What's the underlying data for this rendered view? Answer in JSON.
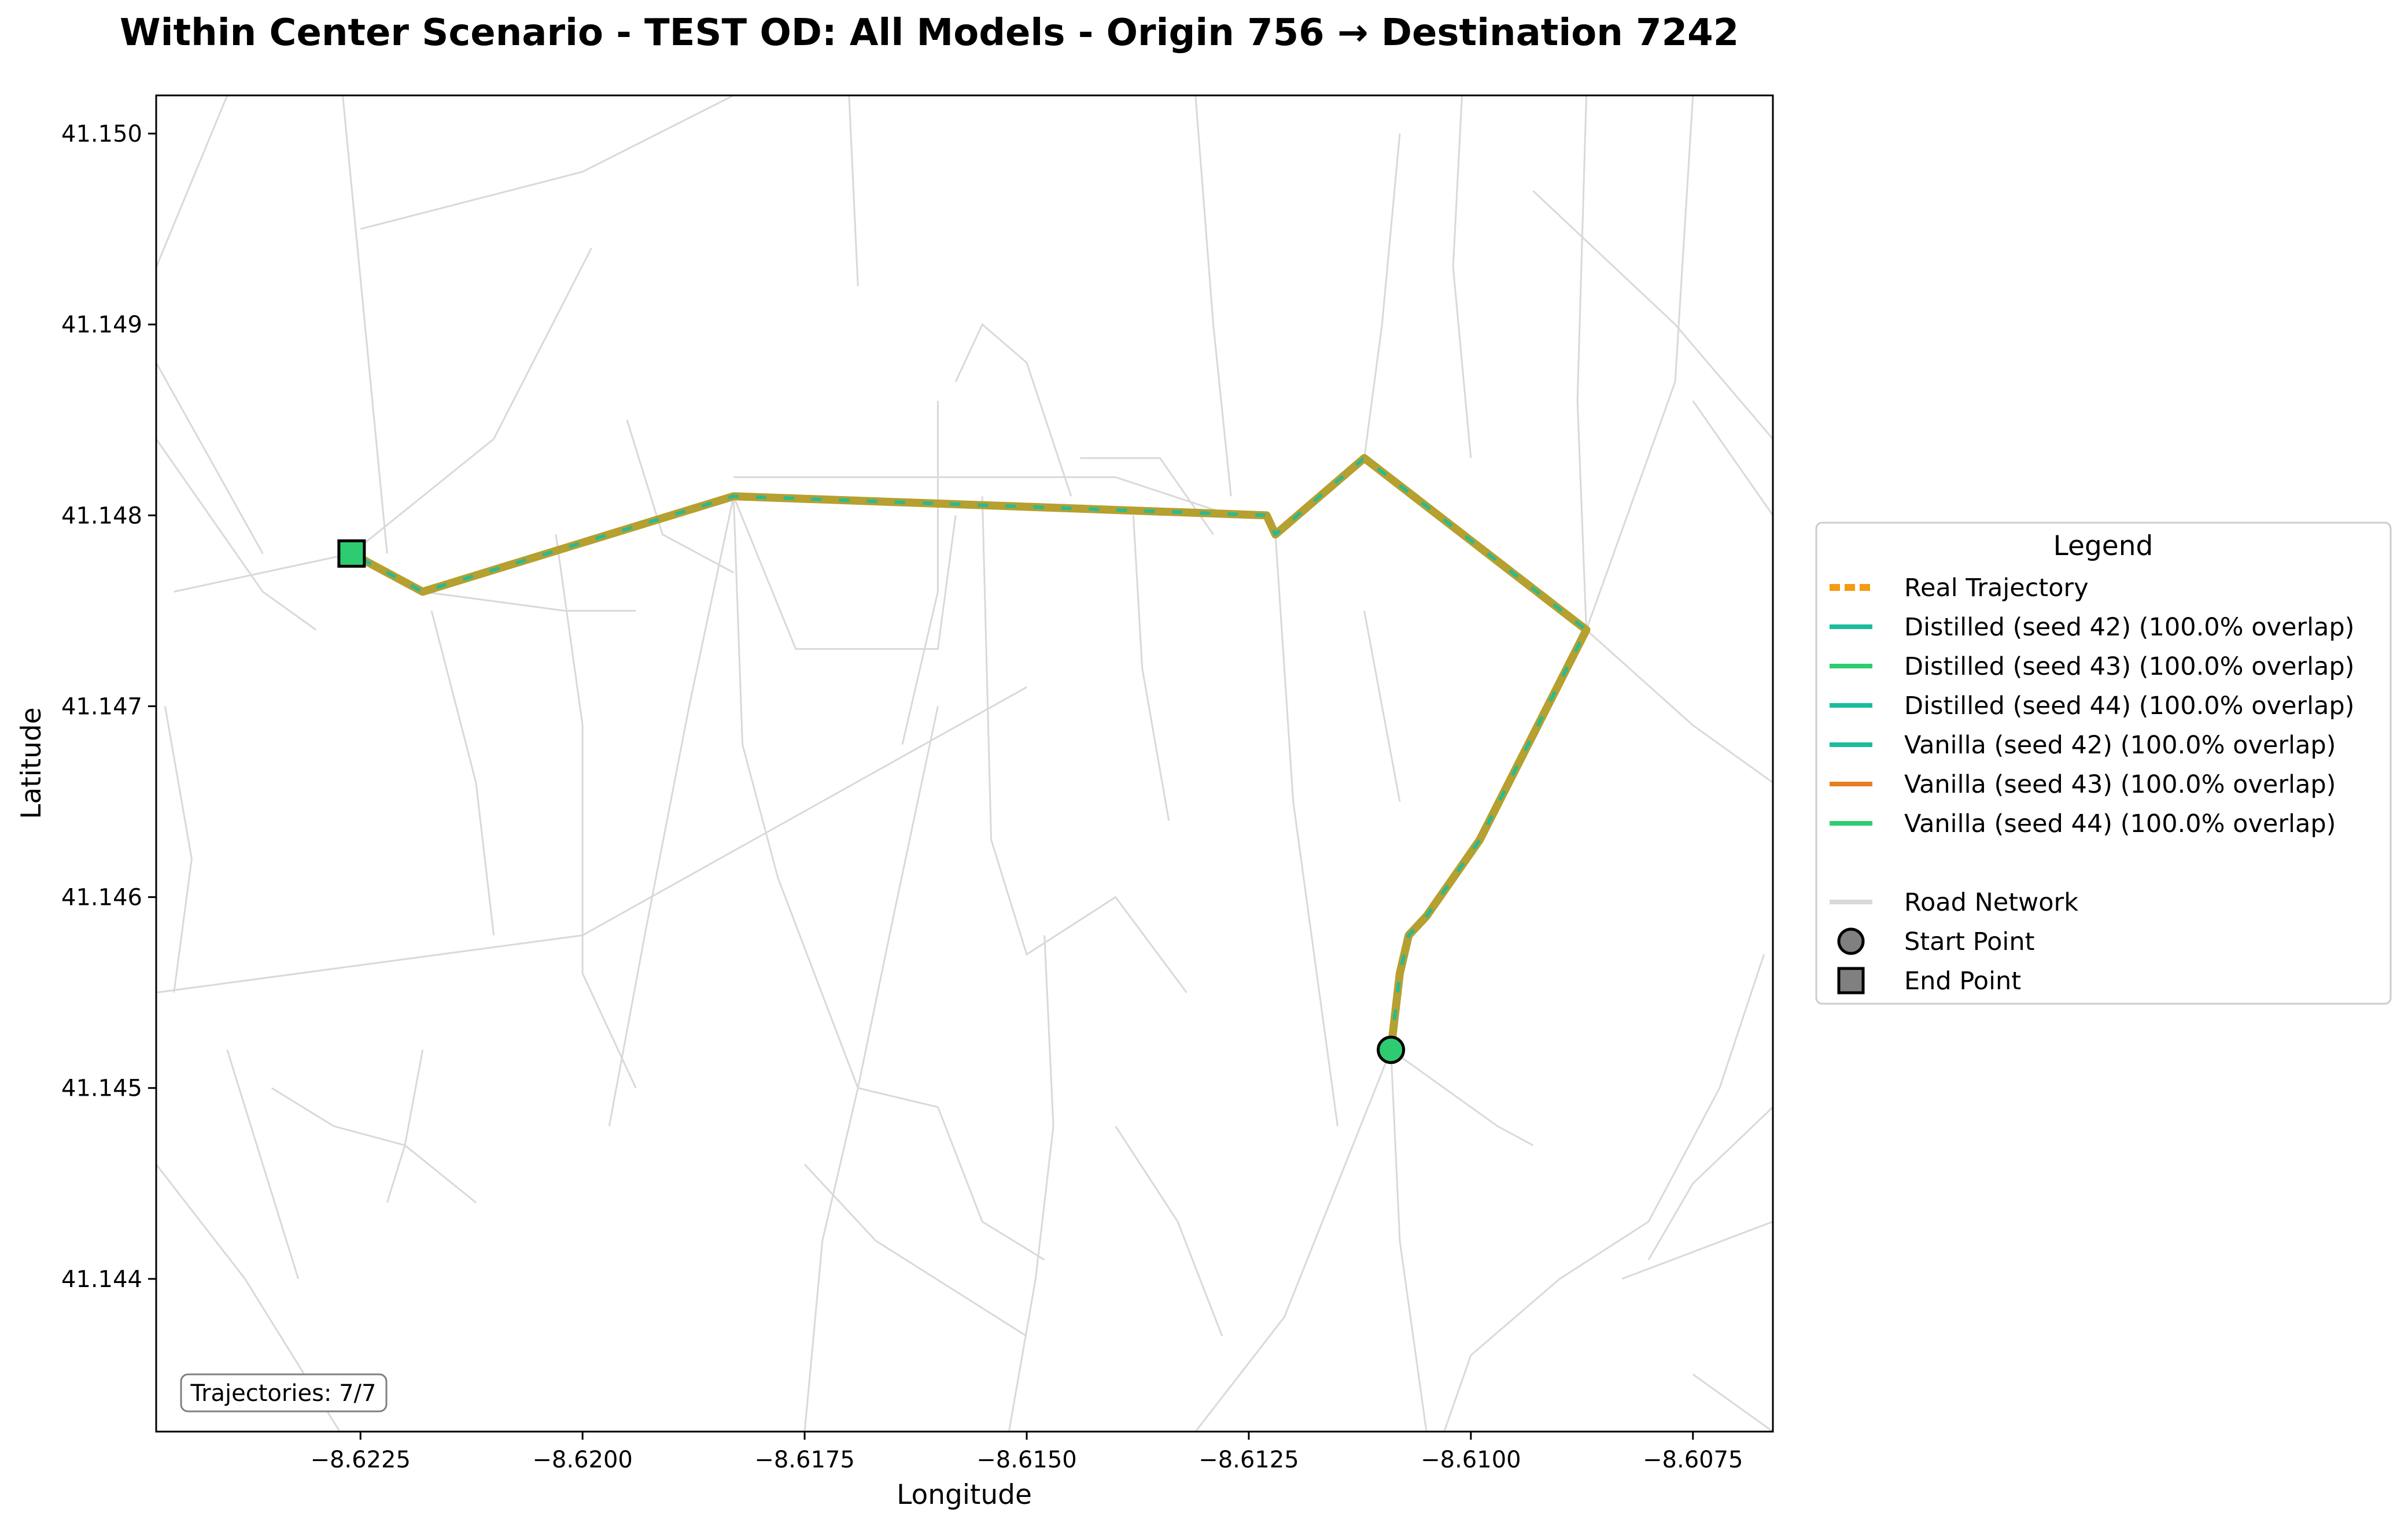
{
  "chart_data": {
    "type": "line",
    "title": "Within Center Scenario - TEST OD: All Models - Origin 756 → Destination 7242",
    "xlabel": "Longitude",
    "ylabel": "Latitude",
    "xlim": [
      -8.6248,
      -8.6066
    ],
    "ylim": [
      41.1432,
      41.1502
    ],
    "x_ticks": [
      {
        "value": -8.6225,
        "label": "−8.6225"
      },
      {
        "value": -8.62,
        "label": "−8.6200"
      },
      {
        "value": -8.6175,
        "label": "−8.6175"
      },
      {
        "value": -8.615,
        "label": "−8.6150"
      },
      {
        "value": -8.6125,
        "label": "−8.6125"
      },
      {
        "value": -8.61,
        "label": "−8.6100"
      },
      {
        "value": -8.6075,
        "label": "−8.6075"
      }
    ],
    "y_ticks": [
      {
        "value": 41.144,
        "label": "41.144"
      },
      {
        "value": 41.145,
        "label": "41.145"
      },
      {
        "value": 41.146,
        "label": "41.146"
      },
      {
        "value": 41.147,
        "label": "41.147"
      },
      {
        "value": 41.148,
        "label": "41.148"
      },
      {
        "value": 41.149,
        "label": "41.149"
      },
      {
        "value": 41.15,
        "label": "41.150"
      }
    ],
    "grid": false,
    "legend_position": "right",
    "legend_title": "Legend",
    "trajectory": {
      "x": [
        -8.6109,
        -8.6108,
        -8.6107,
        -8.6105,
        -8.6102,
        -8.6099,
        -8.6087,
        -8.6112,
        -8.6122,
        -8.6123,
        -8.6183,
        -8.6218,
        -8.6226
      ],
      "y": [
        41.1452,
        41.1456,
        41.1458,
        41.1459,
        41.1461,
        41.1463,
        41.1474,
        41.1483,
        41.1479,
        41.148,
        41.1481,
        41.1476,
        41.1478
      ]
    },
    "series": [
      {
        "name": "Real Trajectory",
        "color": "#f39c12",
        "style": "dashed"
      },
      {
        "name": "Distilled (seed 42) (100.0% overlap)",
        "color": "#1abc9c",
        "style": "solid"
      },
      {
        "name": "Distilled (seed 43) (100.0% overlap)",
        "color": "#2ecc71",
        "style": "solid"
      },
      {
        "name": "Distilled (seed 44) (100.0% overlap)",
        "color": "#1abc9c",
        "style": "solid"
      },
      {
        "name": "Vanilla (seed 42) (100.0% overlap)",
        "color": "#1abc9c",
        "style": "solid"
      },
      {
        "name": "Vanilla (seed 43) (100.0% overlap)",
        "color": "#e67e22",
        "style": "solid"
      },
      {
        "name": "Vanilla (seed 44) (100.0% overlap)",
        "color": "#2ecc71",
        "style": "solid"
      }
    ],
    "extra_legend": [
      {
        "name": "Road Network",
        "kind": "line",
        "color": "#d9d9d9"
      },
      {
        "name": "Start Point",
        "kind": "circle",
        "color": "#808080"
      },
      {
        "name": "End Point",
        "kind": "square",
        "color": "#808080"
      }
    ],
    "start_point": {
      "x": -8.6109,
      "y": 41.1452,
      "color": "#2ecc71"
    },
    "end_point": {
      "x": -8.6226,
      "y": 41.1478,
      "color": "#2ecc71"
    },
    "overlay_color": "#b5a030",
    "road_color": "#d9d9d9",
    "roads": [
      [
        [
          -8.6248,
          41.1484
        ],
        [
          -8.6236,
          41.1476
        ],
        [
          -8.623,
          41.1474
        ]
      ],
      [
        [
          -8.6246,
          41.1476
        ],
        [
          -8.6226,
          41.1478
        ],
        [
          -8.621,
          41.1484
        ],
        [
          -8.6199,
          41.1494
        ]
      ],
      [
        [
          -8.6248,
          41.1493
        ],
        [
          -8.624,
          41.1502
        ]
      ],
      [
        [
          -8.6248,
          41.1488
        ],
        [
          -8.6236,
          41.1478
        ]
      ],
      [
        [
          -8.6247,
          41.147
        ],
        [
          -8.6244,
          41.1462
        ],
        [
          -8.6246,
          41.1455
        ]
      ],
      [
        [
          -8.6225,
          41.1495
        ],
        [
          -8.62,
          41.1498
        ],
        [
          -8.6183,
          41.1502
        ]
      ],
      [
        [
          -8.6227,
          41.1502
        ],
        [
          -8.6222,
          41.1478
        ]
      ],
      [
        [
          -8.6218,
          41.1476
        ],
        [
          -8.6202,
          41.1475
        ],
        [
          -8.6194,
          41.1475
        ]
      ],
      [
        [
          -8.6217,
          41.1475
        ],
        [
          -8.6212,
          41.1466
        ],
        [
          -8.621,
          41.1458
        ]
      ],
      [
        [
          -8.6248,
          41.1455
        ],
        [
          -8.62,
          41.1458
        ],
        [
          -8.615,
          41.1471
        ]
      ],
      [
        [
          -8.6203,
          41.1479
        ],
        [
          -8.62,
          41.1469
        ],
        [
          -8.62,
          41.1456
        ],
        [
          -8.6194,
          41.145
        ]
      ],
      [
        [
          -8.6195,
          41.1485
        ],
        [
          -8.6191,
          41.1479
        ],
        [
          -8.6183,
          41.1477
        ]
      ],
      [
        [
          -8.6183,
          41.1481
        ],
        [
          -8.6182,
          41.1468
        ],
        [
          -8.6178,
          41.1461
        ],
        [
          -8.6169,
          41.145
        ],
        [
          -8.616,
          41.1449
        ]
      ],
      [
        [
          -8.617,
          41.1502
        ],
        [
          -8.6169,
          41.1492
        ]
      ],
      [
        [
          -8.6183,
          41.1481
        ],
        [
          -8.6176,
          41.1473
        ],
        [
          -8.616,
          41.1473
        ],
        [
          -8.6158,
          41.148
        ]
      ],
      [
        [
          -8.6155,
          41.1481
        ],
        [
          -8.6154,
          41.1463
        ],
        [
          -8.615,
          41.1457
        ],
        [
          -8.614,
          41.146
        ],
        [
          -8.6132,
          41.1455
        ]
      ],
      [
        [
          -8.616,
          41.1486
        ],
        [
          -8.616,
          41.1476
        ],
        [
          -8.6164,
          41.1468
        ]
      ],
      [
        [
          -8.6158,
          41.1487
        ],
        [
          -8.6155,
          41.149
        ],
        [
          -8.615,
          41.1488
        ],
        [
          -8.6145,
          41.1481
        ]
      ],
      [
        [
          -8.6183,
          41.1482
        ],
        [
          -8.616,
          41.1482
        ],
        [
          -8.614,
          41.1482
        ],
        [
          -8.6127,
          41.148
        ]
      ],
      [
        [
          -8.6131,
          41.1502
        ],
        [
          -8.6129,
          41.149
        ],
        [
          -8.6127,
          41.1481
        ]
      ],
      [
        [
          -8.6144,
          41.1483
        ],
        [
          -8.6135,
          41.1483
        ],
        [
          -8.6129,
          41.1479
        ]
      ],
      [
        [
          -8.6138,
          41.148
        ],
        [
          -8.6137,
          41.1472
        ],
        [
          -8.6134,
          41.1464
        ]
      ],
      [
        [
          -8.6122,
          41.1479
        ],
        [
          -8.612,
          41.1465
        ],
        [
          -8.6115,
          41.1448
        ]
      ],
      [
        [
          -8.6112,
          41.1475
        ],
        [
          -8.611,
          41.147
        ],
        [
          -8.6108,
          41.1465
        ]
      ],
      [
        [
          -8.6112,
          41.1483
        ],
        [
          -8.611,
          41.149
        ],
        [
          -8.6108,
          41.15
        ]
      ],
      [
        [
          -8.61,
          41.1483
        ],
        [
          -8.6102,
          41.1493
        ],
        [
          -8.6101,
          41.1502
        ]
      ],
      [
        [
          -8.6087,
          41.1502
        ],
        [
          -8.6088,
          41.1486
        ],
        [
          -8.6087,
          41.1474
        ]
      ],
      [
        [
          -8.6087,
          41.1474
        ],
        [
          -8.6075,
          41.1469
        ],
        [
          -8.6066,
          41.1466
        ]
      ],
      [
        [
          -8.6087,
          41.1474
        ],
        [
          -8.6077,
          41.1487
        ],
        [
          -8.6075,
          41.1502
        ]
      ],
      [
        [
          -8.6066,
          41.1484
        ],
        [
          -8.6077,
          41.149
        ],
        [
          -8.6093,
          41.1497
        ]
      ],
      [
        [
          -8.6066,
          41.148
        ],
        [
          -8.6075,
          41.1486
        ]
      ],
      [
        [
          -8.6067,
          41.1457
        ],
        [
          -8.6072,
          41.145
        ],
        [
          -8.608,
          41.1443
        ],
        [
          -8.609,
          41.144
        ],
        [
          -8.61,
          41.1436
        ],
        [
          -8.6103,
          41.1432
        ]
      ],
      [
        [
          -8.6109,
          41.1452
        ],
        [
          -8.6097,
          41.1448
        ],
        [
          -8.6093,
          41.1447
        ]
      ],
      [
        [
          -8.6109,
          41.1452
        ],
        [
          -8.6108,
          41.1442
        ],
        [
          -8.6105,
          41.1432
        ]
      ],
      [
        [
          -8.6109,
          41.1452
        ],
        [
          -8.6121,
          41.1438
        ],
        [
          -8.6131,
          41.1432
        ]
      ],
      [
        [
          -8.6083,
          41.144
        ],
        [
          -8.6066,
          41.1443
        ]
      ],
      [
        [
          -8.6066,
          41.1449
        ],
        [
          -8.6075,
          41.1445
        ],
        [
          -8.608,
          41.1441
        ]
      ],
      [
        [
          -8.6075,
          41.1435
        ],
        [
          -8.6066,
          41.1432
        ]
      ],
      [
        [
          -8.616,
          41.147
        ],
        [
          -8.6165,
          41.1459
        ],
        [
          -8.6169,
          41.145
        ],
        [
          -8.6173,
          41.1442
        ],
        [
          -8.6175,
          41.1432
        ]
      ],
      [
        [
          -8.6148,
          41.1458
        ],
        [
          -8.6147,
          41.1448
        ],
        [
          -8.6149,
          41.144
        ],
        [
          -8.6152,
          41.1432
        ]
      ],
      [
        [
          -8.614,
          41.1448
        ],
        [
          -8.6133,
          41.1443
        ],
        [
          -8.6128,
          41.1437
        ]
      ],
      [
        [
          -8.616,
          41.1449
        ],
        [
          -8.6155,
          41.1443
        ],
        [
          -8.6148,
          41.1441
        ]
      ],
      [
        [
          -8.6248,
          41.1446
        ],
        [
          -8.6238,
          41.144
        ],
        [
          -8.6226,
          41.1431
        ]
      ],
      [
        [
          -8.6235,
          41.145
        ],
        [
          -8.6228,
          41.1448
        ],
        [
          -8.622,
          41.1447
        ],
        [
          -8.6212,
          41.1444
        ]
      ],
      [
        [
          -8.6218,
          41.1452
        ],
        [
          -8.622,
          41.1447
        ],
        [
          -8.6222,
          41.1444
        ]
      ],
      [
        [
          -8.624,
          41.1452
        ],
        [
          -8.6236,
          41.1446
        ],
        [
          -8.6232,
          41.144
        ]
      ],
      [
        [
          -8.6183,
          41.1481
        ],
        [
          -8.6188,
          41.147
        ],
        [
          -8.6193,
          41.1458
        ],
        [
          -8.6197,
          41.1448
        ]
      ],
      [
        [
          -8.6175,
          41.1446
        ],
        [
          -8.6167,
          41.1442
        ],
        [
          -8.615,
          41.1437
        ]
      ]
    ],
    "annotation": "Trajectories: 7/7"
  }
}
